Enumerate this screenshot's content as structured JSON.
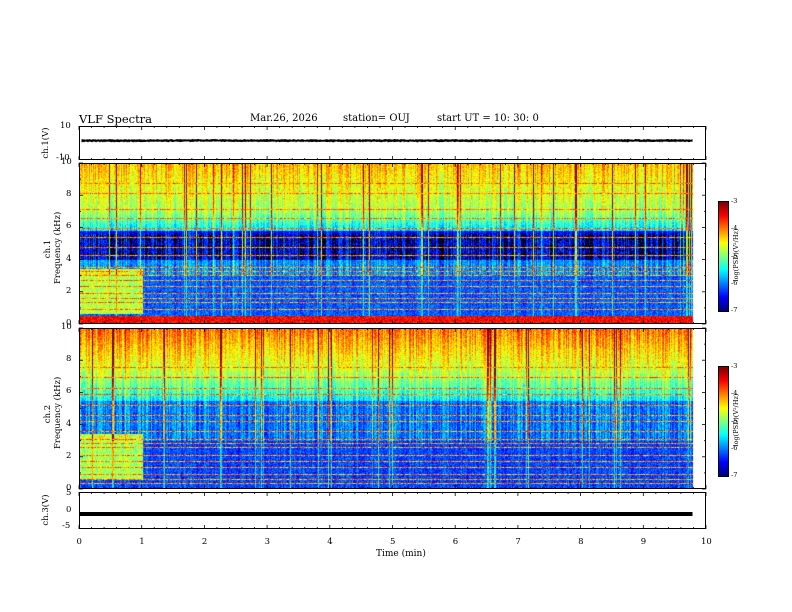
{
  "header": {
    "title": "VLF Spectra",
    "date": "Mar.26, 2026",
    "station": "station= OUJ",
    "start": "start  UT =   10: 30: 0"
  },
  "colors": {
    "background": "#ffffff",
    "axis": "#000000",
    "trace": "#000000"
  },
  "chart_data": [
    {
      "type": "line",
      "name": "waveform-ch1",
      "ylabel": "ch.1(V)",
      "ylim": [
        -10,
        10
      ],
      "yticks": [
        "10",
        "-10"
      ],
      "xlim": [
        0,
        10
      ],
      "x": [
        0,
        1,
        2,
        3,
        4,
        5,
        6,
        7,
        8,
        9,
        9.8
      ],
      "y": [
        1.5,
        1.4,
        1.6,
        1.5,
        1.4,
        1.5,
        1.5,
        1.4,
        1.5,
        1.5,
        1.5
      ],
      "peak_to_peak": 2
    },
    {
      "type": "heatmap",
      "name": "spectrogram-ch1",
      "ylabel": "ch.1\nFrequency (kHz)",
      "xlim": [
        0,
        10
      ],
      "ylim": [
        0,
        10
      ],
      "yticks": [
        "0",
        "2",
        "4",
        "6",
        "8",
        "10"
      ],
      "data_end_min": 9.8,
      "colorbar": {
        "label": "log(PSD)(V²/Hz)",
        "range": [
          -7,
          -3
        ],
        "ticks": [
          "-3",
          "-4",
          "-5",
          "-6",
          "-7"
        ],
        "colormap": "jet"
      }
    },
    {
      "type": "heatmap",
      "name": "spectrogram-ch2",
      "ylabel": "ch.2\nFrequency (kHz)",
      "xlim": [
        0,
        10
      ],
      "ylim": [
        0,
        10
      ],
      "yticks": [
        "0",
        "2",
        "4",
        "6",
        "8",
        "10"
      ],
      "data_end_min": 9.8,
      "colorbar": {
        "label": "log(PSD)(V²/Hz)",
        "range": [
          -7,
          -3
        ],
        "ticks": [
          "-3",
          "-4",
          "-5",
          "-6",
          "-7"
        ],
        "colormap": "jet"
      }
    },
    {
      "type": "line",
      "name": "waveform-ch3",
      "ylabel": "ch.3(V)",
      "ylim": [
        -5,
        5
      ],
      "yticks": [
        "5",
        "0",
        "-5"
      ],
      "xlim": [
        0,
        10
      ],
      "x": [
        0,
        9.8
      ],
      "y": [
        -1,
        -1
      ]
    }
  ],
  "xaxis": {
    "label": "Time  (min)",
    "ticks": [
      "0",
      "1",
      "2",
      "3",
      "4",
      "5",
      "6",
      "7",
      "8",
      "9",
      "10"
    ]
  }
}
